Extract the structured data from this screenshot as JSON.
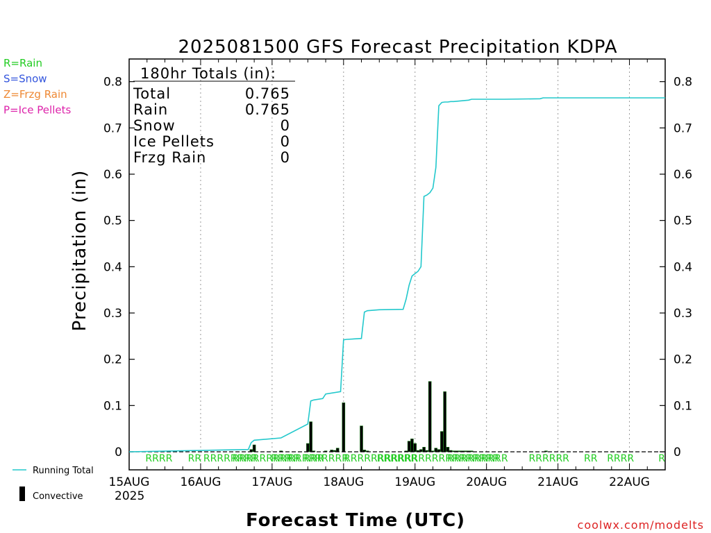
{
  "chart_data": {
    "type": "bar",
    "title": "2025081500 GFS Forecast Precipitation KDPA",
    "xlabel": "Forecast Time (UTC)",
    "ylabel": "Precipitation (in)",
    "ylim": [
      0,
      0.85
    ],
    "xlim_hours": [
      0,
      180
    ],
    "yticks": [
      "0",
      "0.1",
      "0.2",
      "0.3",
      "0.4",
      "0.5",
      "0.6",
      "0.7",
      "0.8"
    ],
    "x_tick_labels": [
      "15AUG",
      "16AUG",
      "17AUG",
      "18AUG",
      "19AUG",
      "20AUG",
      "21AUG",
      "22AUG"
    ],
    "x_tick_hours": [
      0,
      24,
      48,
      72,
      96,
      120,
      144,
      168
    ],
    "year_label": "2025",
    "grid": "vertical dotted at day boundaries",
    "series": [
      {
        "name": "Running Total",
        "type": "line",
        "color": "#22c8cc",
        "hours": [
          0,
          40,
          41,
          42,
          51,
          60,
          61,
          62,
          65,
          66,
          71,
          72,
          73,
          78,
          79,
          80,
          84,
          92,
          93,
          94,
          95,
          96,
          97,
          98,
          99,
          100,
          101,
          102,
          103,
          104,
          105,
          106,
          107,
          108,
          109,
          114,
          115,
          126,
          138,
          139,
          140,
          180
        ],
        "values": [
          0,
          0.005,
          0.02,
          0.025,
          0.03,
          0.06,
          0.11,
          0.112,
          0.115,
          0.125,
          0.13,
          0.242,
          0.243,
          0.245,
          0.302,
          0.305,
          0.307,
          0.308,
          0.33,
          0.36,
          0.38,
          0.385,
          0.39,
          0.4,
          0.552,
          0.555,
          0.56,
          0.57,
          0.615,
          0.748,
          0.755,
          0.756,
          0.756,
          0.757,
          0.757,
          0.76,
          0.762,
          0.762,
          0.763,
          0.765,
          0.765,
          0.765
        ]
      },
      {
        "name": "Convective",
        "type": "bar",
        "color": "#000000",
        "hours": [
          41,
          42,
          51,
          60,
          61,
          62,
          66,
          68,
          69,
          70,
          72,
          78,
          79,
          80,
          93,
          94,
          95,
          96,
          97,
          98,
          99,
          100,
          101,
          102,
          103,
          104,
          105,
          106,
          107,
          108,
          109,
          110,
          111,
          112,
          113,
          114,
          115,
          140
        ],
        "values": [
          0.005,
          0.015,
          0.002,
          0.018,
          0.065,
          0.002,
          0.002,
          0.004,
          0.003,
          0.008,
          0.106,
          0.056,
          0.004,
          0.002,
          0.002,
          0.023,
          0.028,
          0.018,
          0.003,
          0.005,
          0.01,
          0.003,
          0.152,
          0.002,
          0.008,
          0.005,
          0.044,
          0.13,
          0.01,
          0.003,
          0.002,
          0.002,
          0.002,
          0.002,
          0.002,
          0.002,
          0.002,
          0.002
        ]
      }
    ],
    "ptype_markers": [
      {
        "label": "RRRR",
        "hour": 10
      },
      {
        "label": "RR",
        "hour": 22
      },
      {
        "label": "RRRRRRRR",
        "hour": 34
      },
      {
        "label": "RRRRRRRRRR",
        "hour": 46
      },
      {
        "label": "RRR",
        "hour": 51
      },
      {
        "label": "RRRR",
        "hour": 58
      },
      {
        "label": "RRR",
        "hour": 62
      },
      {
        "label": "RRRRR",
        "hour": 68
      },
      {
        "label": "RRRRRRR",
        "hour": 80
      },
      {
        "label": "RRRRRR",
        "hour": 90
      },
      {
        "label": "RRRRRRRRRRRRRRRRR",
        "hour": 105
      },
      {
        "label": "RRRRRRRRR",
        "hour": 117
      },
      {
        "label": "RRRRRR",
        "hour": 141
      },
      {
        "label": "RR",
        "hour": 155
      },
      {
        "label": "RRRR",
        "hour": 165
      },
      {
        "label": "R",
        "hour": 180
      }
    ],
    "summary_box": {
      "heading": "180hr Totals (in):",
      "rows": [
        {
          "label": "Total",
          "value": "0.765"
        },
        {
          "label": "Rain",
          "value": "0.765"
        },
        {
          "label": "Snow",
          "value": "0"
        },
        {
          "label": "Ice Pellets",
          "value": "0"
        },
        {
          "label": "Frzg Rain",
          "value": "0"
        }
      ]
    },
    "ptype_key": [
      {
        "text": "R=Rain",
        "color": "#22cc22"
      },
      {
        "text": "S=Snow",
        "color": "#3355dd"
      },
      {
        "text": "Z=Frzg Rain",
        "color": "#ee8833"
      },
      {
        "text": "P=Ice Pellets",
        "color": "#dd22aa"
      }
    ],
    "legend": [
      {
        "label": "Running Total",
        "color": "#22c8cc"
      },
      {
        "label": "Convective",
        "color": "#000000"
      }
    ],
    "credit": "coolwx.com/modelts"
  }
}
